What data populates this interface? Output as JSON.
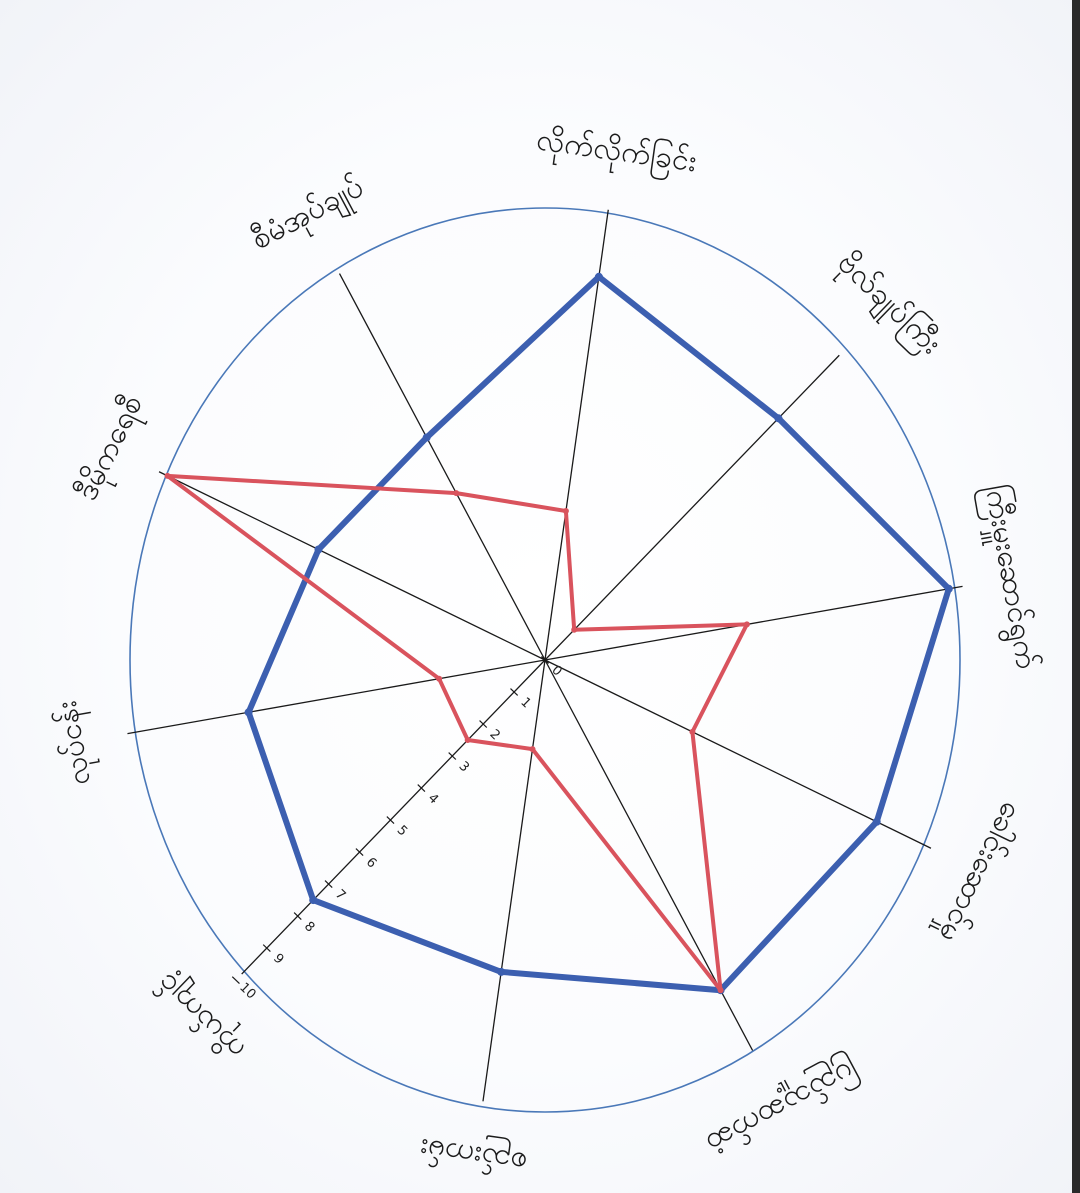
{
  "chart_data": {
    "type": "radar",
    "title": "",
    "categories": [
      "လိုက်လိုက်ခြင်း",
      "ဗိုလ်ချုပ်ကြီး",
      "ကြီးမှူးဆောင်ရွက်",
      "ခေါင်းဆောင်မှု",
      "ပြည်သူ့ဆက်ဆံ",
      "စည်းကမ်း",
      "ကိုယ်ကျင့်",
      "လုပ်ငန်း",
      "ဒီမိုကရေစီ",
      "စီမံအုပ်ချုပ်"
    ],
    "rmax": 10,
    "ticks": [
      0,
      1,
      2,
      3,
      4,
      5,
      6,
      7,
      8,
      9,
      10
    ],
    "series": [
      {
        "values": [
          9,
          8,
          10,
          9,
          8.5,
          7,
          7.5,
          7,
          6,
          6
        ]
      },
      {
        "values": [
          3.5,
          1,
          5,
          4,
          8.5,
          2,
          2.5,
          2.5,
          10,
          4.5
        ]
      }
    ],
    "colors": {
      "series_1": "#3c5fb0",
      "series_2": "#d9535d",
      "ring": "#4a78b8",
      "spoke": "#1a1a1a"
    },
    "grid": false,
    "legend": "none"
  }
}
